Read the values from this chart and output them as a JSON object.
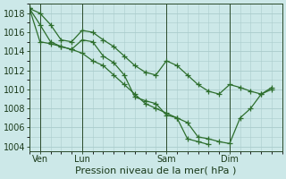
{
  "title": "Pression niveau de la mer( hPa )",
  "background_color": "#cce8e8",
  "grid_color": "#aacccc",
  "line_color": "#2d6e2d",
  "ylim": [
    1003.5,
    1019.0
  ],
  "yticks": [
    1004,
    1006,
    1008,
    1010,
    1012,
    1014,
    1016,
    1018
  ],
  "xtick_labels": [
    "Ven",
    "Lun",
    "Sam",
    "Dim"
  ],
  "xtick_positions": [
    1,
    5,
    13,
    19
  ],
  "xlim": [
    0,
    24
  ],
  "vlines": [
    1,
    5,
    13,
    19
  ],
  "line1_x": [
    0,
    1,
    2,
    3,
    4,
    5,
    6,
    7,
    8,
    9,
    10,
    11,
    12,
    13,
    14,
    15,
    16,
    17,
    18,
    19,
    20,
    21,
    22,
    23
  ],
  "line1_y": [
    1018.5,
    1018.0,
    1016.8,
    1015.2,
    1015.0,
    1016.2,
    1016.0,
    1015.2,
    1014.5,
    1013.5,
    1012.5,
    1011.8,
    1011.5,
    1013.0,
    1012.5,
    1011.5,
    1010.5,
    1009.8,
    1009.5,
    1010.5,
    1010.2,
    1009.8,
    1009.5,
    1010.0
  ],
  "line2_x": [
    0,
    1,
    2,
    3,
    4,
    5,
    6,
    7,
    8,
    9,
    10,
    11,
    12,
    13,
    14,
    15,
    16,
    17,
    18,
    19,
    20,
    21,
    22,
    23
  ],
  "line2_y": [
    1018.5,
    1016.8,
    1015.0,
    1014.5,
    1014.2,
    1013.8,
    1013.0,
    1012.5,
    1011.5,
    1010.5,
    1009.5,
    1008.5,
    1008.0,
    1007.5,
    1007.0,
    1006.5,
    1005.0,
    1004.8,
    1004.5,
    1004.3,
    1007.0,
    1008.0,
    1009.5,
    1010.2
  ],
  "line3_x": [
    0,
    1,
    2,
    3,
    4,
    5,
    6,
    7,
    8,
    9,
    10,
    11,
    12,
    13,
    14,
    15,
    16,
    17
  ],
  "line3_y": [
    1018.5,
    1015.0,
    1014.8,
    1014.5,
    1014.2,
    1015.2,
    1015.0,
    1013.5,
    1012.8,
    1011.5,
    1009.2,
    1008.8,
    1008.5,
    1007.3,
    1007.0,
    1004.8,
    1004.5,
    1004.2
  ],
  "marker": "+",
  "marker_size": 4,
  "linewidth": 0.9,
  "fontsize_title": 8,
  "fontsize_tick": 7
}
